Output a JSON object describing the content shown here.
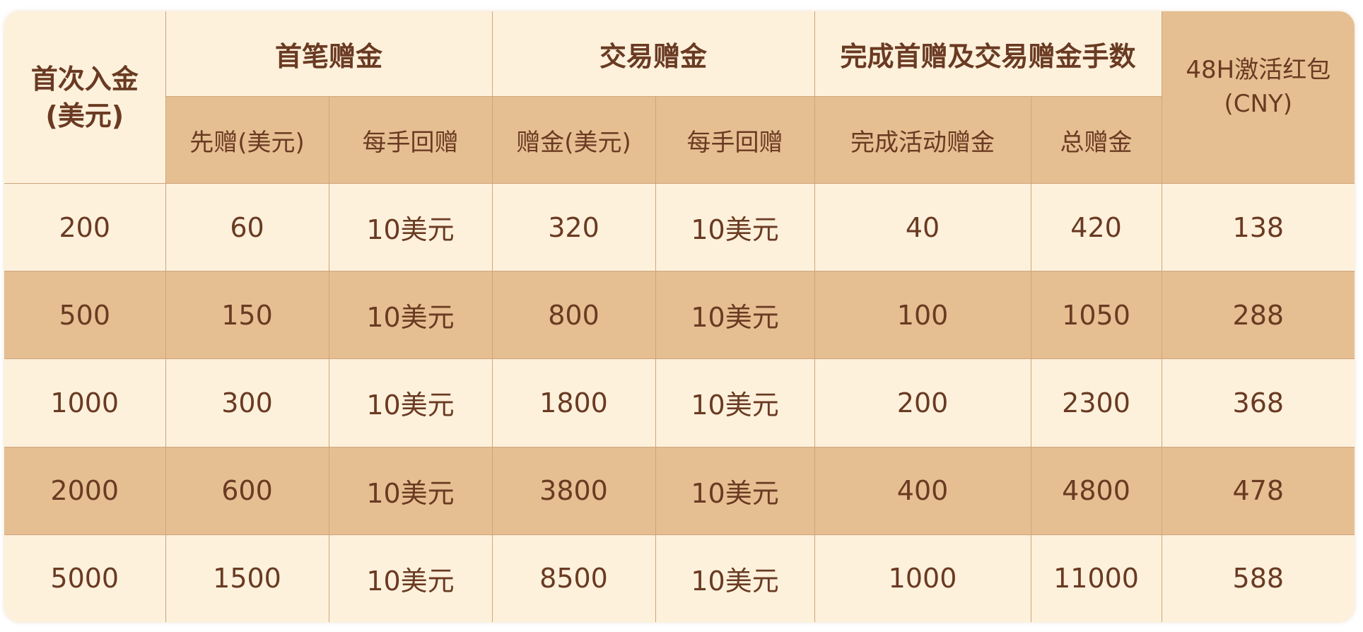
{
  "header": {
    "deposit": "首次入金",
    "deposit_unit": "(美元)",
    "groups": [
      "首笔赠金",
      "交易赠金",
      "完成首赠及交易赠金手数"
    ],
    "red_packet": "48H激活红包",
    "red_packet_unit": "(CNY)",
    "subcolumns": [
      "先赠(美元)",
      "每手回赠",
      "赠金(美元)",
      "每手回赠",
      "完成活动赠金",
      "总赠金"
    ]
  },
  "rows": [
    [
      "200",
      "60",
      "10美元",
      "320",
      "10美元",
      "40",
      "420",
      "138"
    ],
    [
      "500",
      "150",
      "10美元",
      "800",
      "10美元",
      "100",
      "1050",
      "288"
    ],
    [
      "1000",
      "300",
      "10美元",
      "1800",
      "10美元",
      "200",
      "2300",
      "368"
    ],
    [
      "2000",
      "600",
      "10美元",
      "3800",
      "10美元",
      "400",
      "4800",
      "478"
    ],
    [
      "5000",
      "1500",
      "10美元",
      "8500",
      "10美元",
      "1000",
      "11000",
      "588"
    ]
  ],
  "colors": {
    "light": "#fdf1dc",
    "dark": "#e5bf92",
    "text": "#6a3a22",
    "border": "#cfa57c"
  }
}
